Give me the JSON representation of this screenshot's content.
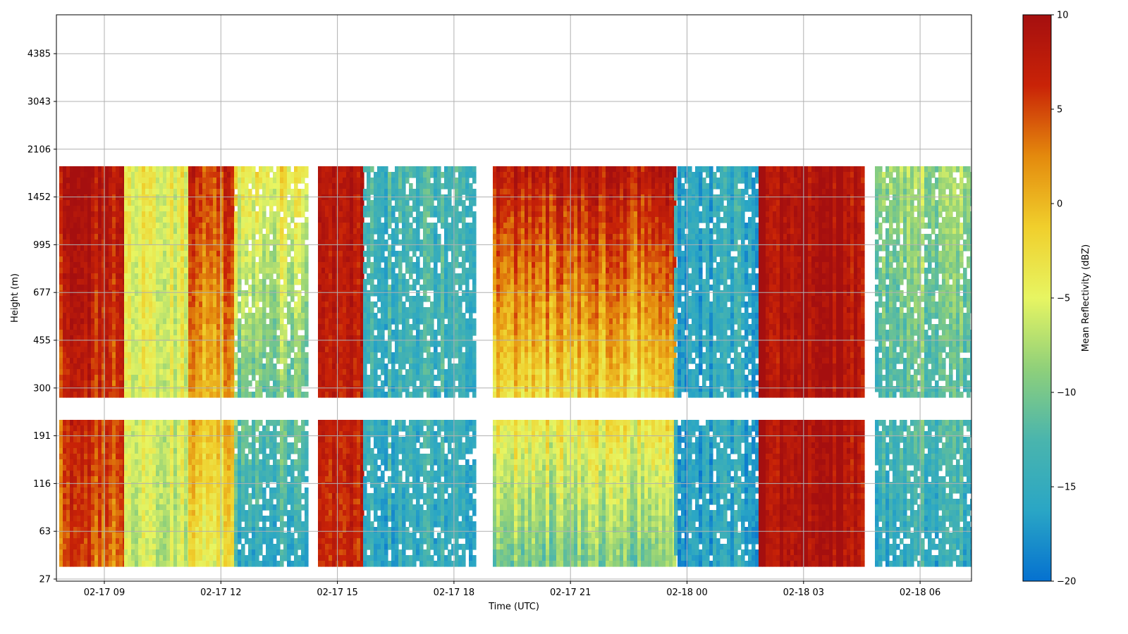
{
  "chart_data": {
    "type": "heatmap",
    "xlabel": "Time (UTC)",
    "ylabel": "Height (m)",
    "x_ticks": [
      "02-17 09",
      "02-17 12",
      "02-17 15",
      "02-17 18",
      "02-17 21",
      "02-18 00",
      "02-18 03",
      "02-18 06"
    ],
    "y_ticks": [
      "27",
      "63",
      "116",
      "191",
      "300",
      "455",
      "677",
      "995",
      "1452",
      "2106",
      "3043",
      "4385"
    ],
    "x_range_hours": [
      7.75,
      31.35
    ],
    "y_scale": "log-like (ticks evenly spaced)",
    "grid": true,
    "colorbar": {
      "label": "Mean Reflectivity (dBZ)",
      "min": -20,
      "max": 10,
      "ticks": [
        "10",
        "5",
        "0",
        "−5",
        "−10",
        "−15",
        "−20"
      ],
      "colormap": [
        "#0571d0",
        "#2aa6c5",
        "#4ab5ad",
        "#8fd07a",
        "#e7f562",
        "#f0cf2c",
        "#e48a0d",
        "#c92307",
        "#a50f0f"
      ]
    },
    "reflectivity_bands": [
      {
        "start": "02-17 07:50",
        "end": "02-17 09:30",
        "level": "strong",
        "dbz_upper": 9,
        "dbz_lower": 4
      },
      {
        "start": "02-17 09:30",
        "end": "02-17 11:10",
        "level": "moderate",
        "dbz_upper": -4,
        "dbz_lower": -6
      },
      {
        "start": "02-17 11:10",
        "end": "02-17 12:20",
        "level": "strong",
        "dbz_upper": 6,
        "dbz_lower": -4
      },
      {
        "start": "02-17 12:20",
        "end": "02-17 14:10",
        "level": "weak",
        "dbz_upper": -3,
        "dbz_lower": -15
      },
      {
        "start": "02-17 14:30",
        "end": "02-17 15:40",
        "level": "strong",
        "dbz_upper": 8,
        "dbz_lower": 6
      },
      {
        "start": "02-17 15:40",
        "end": "02-17 18:30",
        "level": "weak",
        "dbz_upper": -13,
        "dbz_lower": -15
      },
      {
        "start": "02-17 19:00",
        "end": "02-17 23:40",
        "level": "strong",
        "dbz_upper": 8,
        "dbz_lower": -10
      },
      {
        "start": "02-17 23:40",
        "end": "02-18 01:50",
        "level": "weak",
        "dbz_upper": -15,
        "dbz_lower": -16
      },
      {
        "start": "02-18 01:50",
        "end": "02-18 04:30",
        "level": "strong",
        "dbz_upper": 9,
        "dbz_lower": 9
      },
      {
        "start": "02-18 04:50",
        "end": "02-18 07:20",
        "level": "weak",
        "dbz_upper": -8,
        "dbz_lower": -15
      }
    ]
  }
}
